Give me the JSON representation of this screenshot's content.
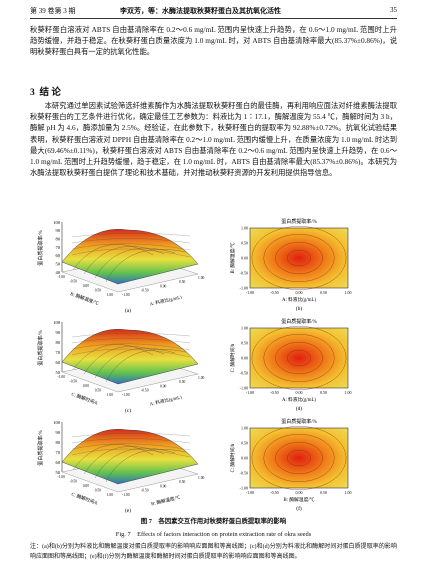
{
  "header": {
    "issue": "第 39 卷第 3 期",
    "title": "李双芳，等：水酶法提取秋葵籽蛋白及其抗氧化活性",
    "page": "35"
  },
  "paragraphs": [
    "秋葵籽蛋白溶液对 ABTS 自由基清除率在 0.2～0.6 mg/mL 范围内呈快速上升趋势，在 0.6～1.0 mg/mL 范围时上升趋势缓慢，并趋于稳定。在秋葵籽蛋白质量浓度为 1.0 mg/mL 时，对 ABTS 自由基清除率最大(85.37%±0.86%)，说明秋葵籽蛋白具有一定的抗氧化性能。"
  ],
  "section": {
    "number": "3",
    "title": "结 论",
    "paragraphs": [
      "本研究通过单因素试验筛选纤维素酶作为水酶法提取秋葵籽蛋白的最佳酶，再利用响应面法对纤维素酶法提取秋葵籽蛋白的工艺条件进行优化，确定最佳工艺参数为：料液比为 1∶17.1，酶解温度为 55.4 ℃，酶解时间为 3 h，酶解 pH 为 4.6，酶添加量为 2.5%。经验证，在此参数下，秋葵籽蛋白的提取率为 92.88%±0.72%。抗氧化试验结果表明，秋葵籽蛋白溶液对 DPPH 自由基清除率在 0.2～1.0 mg/mL 范围内缓慢上升，在质量浓度为 1.0 mg/mL 时达到最大(69.46%±0.11%)，秋葵籽蛋白溶液对 ABTS 自由基清除率在 0.2～0.6 mg/mL 范围内呈快速上升趋势，在 0.6～1.0 mg/mL 范围时上升趋势缓慢，趋于稳定，在 1.0 mg/mL 时，ABTS 自由基清除率最大(85.37%±0.86%)。本研究为水酶法提取秋葵籽蛋白提供了理论和技术基础，并对推动秋葵籽资源的开发利用提供指导信息。"
    ]
  },
  "figure": {
    "panels": [
      {
        "label": "(a)",
        "kind": "surface",
        "z_label": "蛋白质提取率/%",
        "x_label": "A: 料液比(g/mL)",
        "y_label": "B: 酶解温度/℃",
        "z_ticks": [
          "40",
          "50",
          "60",
          "70",
          "80",
          "90",
          "100"
        ],
        "x_ticks": [
          "-1.00",
          "-0.50",
          "0.00",
          "0.50",
          "1.00"
        ],
        "y_ticks": [
          "-1.00",
          "-0.50",
          "0.00",
          "0.50",
          "1.00"
        ]
      },
      {
        "label": "(b)",
        "kind": "contour",
        "title": "蛋白质提取率/%",
        "x_label": "A: 料液比(g/mL)",
        "y_label": "B: 酶解温度/℃",
        "x_ticks": [
          "-1.00",
          "-0.50",
          "0.00",
          "0.50",
          "1.00"
        ],
        "y_ticks": [
          "-1.00",
          "-0.50",
          "0.00",
          "0.50",
          "1.00"
        ]
      },
      {
        "label": "(c)",
        "kind": "surface",
        "z_label": "蛋白质提取率/%",
        "x_label": "A: 料液比(g/mL)",
        "y_label": "C: 酶解时间/h",
        "z_ticks": [
          "50",
          "60",
          "70",
          "80",
          "90",
          "100"
        ],
        "x_ticks": [
          "-1.00",
          "-0.50",
          "0.00",
          "0.50",
          "1.00"
        ],
        "y_ticks": [
          "-1.00",
          "-0.50",
          "0.00",
          "0.50",
          "1.00"
        ]
      },
      {
        "label": "(d)",
        "kind": "contour",
        "title": "蛋白质提取率/%",
        "x_label": "A: 料液比(g/mL)",
        "y_label": "C: 酶解时间/h",
        "x_ticks": [
          "-1.00",
          "-0.50",
          "0.00",
          "0.50",
          "1.00"
        ],
        "y_ticks": [
          "-1.00",
          "-0.50",
          "0.00",
          "0.50",
          "1.00"
        ]
      },
      {
        "label": "(e)",
        "kind": "surface",
        "z_label": "蛋白质提取率/%",
        "x_label": "B: 酶解温度/℃",
        "y_label": "C: 酶解时间/h",
        "z_ticks": [
          "50",
          "60",
          "70",
          "80",
          "90",
          "100"
        ],
        "x_ticks": [
          "-1.00",
          "-0.50",
          "0.00",
          "0.50",
          "1.00"
        ],
        "y_ticks": [
          "-1.00",
          "-0.50",
          "0.00",
          "0.50",
          "1.00"
        ]
      },
      {
        "label": "(f)",
        "kind": "contour",
        "title": "蛋白质提取率/%",
        "x_label": "B: 酶解温度/℃",
        "y_label": "C: 酶解时间/h",
        "x_ticks": [
          "-1.00",
          "-0.50",
          "0.00",
          "0.50",
          "1.00"
        ],
        "y_ticks": [
          "-1.00",
          "-0.50",
          "0.00",
          "0.50",
          "1.00"
        ]
      }
    ],
    "caption_cn": "图 7　各因素交互作用对秋葵籽蛋白质提取率的影响",
    "caption_en": "Fig. 7　Effects of factors interaction on protein extraction rate of okra seeds",
    "note": "注：(a)和(b)分别为料液比和酶解温度对蛋白质提取率的影响响应面图和等高线图；(c)和(d)分别为料液比和酶解时间对蛋白质提取率的影响响应面图和等高线图；(e)和(f)分别为酶解温度和酶解时间对蛋白质提取率的影响响应面图和等高线图。"
  }
}
